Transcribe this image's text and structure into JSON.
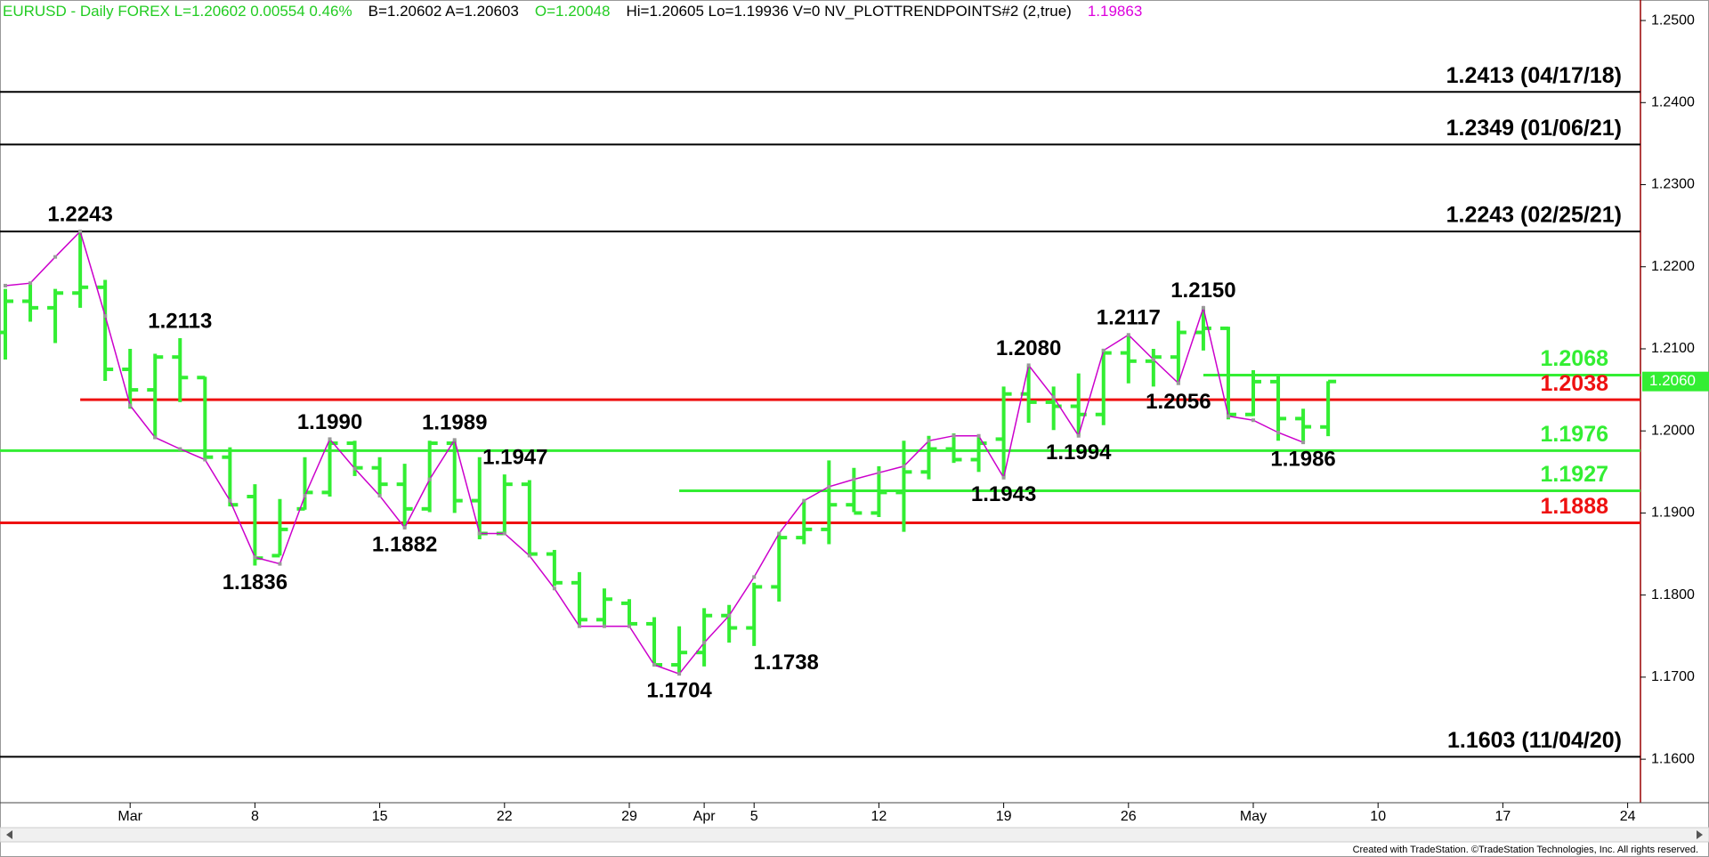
{
  "header": [
    {
      "text": "EURUSD - Daily  FOREX  L=1.20602  0.00554   0.46%",
      "color": "#22cc22"
    },
    {
      "text": "B=1.20602  A=1.20603",
      "color": "#000000"
    },
    {
      "text": "O=1.20048",
      "color": "#22cc22"
    },
    {
      "text": "Hi=1.20605  Lo=1.19936  V=0  NV_PLOTTRENDPOINTS#2 (2,true)",
      "color": "#000000"
    },
    {
      "text": "1.19863",
      "color": "#dd00dd"
    }
  ],
  "footer": "Created with TradeStation. ©TradeStation Technologies, Inc. All rights reserved.",
  "chart_data": {
    "type": "ohlc",
    "color": "#33ee33",
    "categories": [
      null,
      null,
      null,
      null,
      null,
      "Mar",
      null,
      null,
      null,
      null,
      "8",
      null,
      null,
      null,
      null,
      "15",
      null,
      null,
      null,
      null,
      "22",
      null,
      null,
      null,
      null,
      "29",
      null,
      null,
      "Apr",
      null,
      "5",
      null,
      null,
      null,
      null,
      "12",
      null,
      null,
      null,
      null,
      "19",
      null,
      null,
      null,
      null,
      "26",
      null,
      null,
      null,
      null,
      "May",
      null,
      null,
      null,
      null,
      "10",
      null,
      null,
      null,
      null,
      "17",
      null,
      null,
      null,
      null,
      "24"
    ],
    "open": [
      1.212,
      1.2158,
      1.215,
      1.2168,
      1.2175,
      1.2075,
      1.205,
      1.209,
      1.2065,
      1.1968,
      1.192,
      1.1848,
      1.1905,
      1.1925,
      1.1985,
      1.1955,
      1.1935,
      1.1905,
      1.1985,
      1.1915,
      1.1875,
      1.1935,
      1.185,
      1.1815,
      1.177,
      1.179,
      1.1765,
      1.1715,
      1.173,
      1.1775,
      1.176,
      1.181,
      1.187,
      1.188,
      1.191,
      1.19,
      1.1925,
      1.195,
      1.1978,
      1.1965,
      1.199,
      1.2045,
      1.2035,
      1.203,
      1.202,
      1.2095,
      1.2085,
      1.209,
      1.212,
      1.2125,
      1.202,
      1.206,
      1.2015,
      1.20048,
      null,
      null,
      null,
      null,
      null,
      null,
      null,
      null,
      null,
      null,
      null,
      null
    ],
    "high": [
      1.2173,
      1.218,
      1.2173,
      1.2243,
      1.2184,
      1.21,
      1.2094,
      1.2113,
      1.2066,
      1.198,
      1.1935,
      1.1917,
      1.1968,
      1.199,
      1.1988,
      1.1968,
      1.196,
      1.1988,
      1.1989,
      1.1968,
      1.1947,
      1.194,
      1.1855,
      1.1828,
      1.1808,
      1.1795,
      1.1773,
      1.1762,
      1.1784,
      1.1788,
      1.1815,
      1.1875,
      1.1915,
      1.1964,
      1.1955,
      1.1957,
      1.1988,
      1.1994,
      1.1997,
      1.1994,
      1.2054,
      1.208,
      1.2054,
      1.207,
      1.21,
      1.2117,
      1.21,
      1.2134,
      1.215,
      1.2127,
      1.2074,
      1.2067,
      1.2027,
      1.20605,
      null,
      null,
      null,
      null,
      null,
      null,
      null,
      null,
      null,
      null,
      null,
      null
    ],
    "low": [
      1.2087,
      1.2133,
      1.2107,
      1.215,
      1.2061,
      1.2027,
      1.199,
      1.2035,
      1.1967,
      1.1908,
      1.1836,
      1.1848,
      1.1904,
      1.192,
      1.1945,
      1.1921,
      1.1882,
      1.1901,
      1.19,
      1.1868,
      1.1875,
      1.1848,
      1.1811,
      1.1762,
      1.1762,
      1.1762,
      1.1713,
      1.1704,
      1.1713,
      1.1742,
      1.1738,
      1.1792,
      1.1862,
      1.1862,
      1.1901,
      1.1895,
      1.1877,
      1.1941,
      1.1961,
      1.195,
      1.1943,
      1.201,
      1.2001,
      1.1994,
      1.2007,
      1.2058,
      1.2054,
      1.2056,
      1.2098,
      1.2014,
      1.2018,
      1.1988,
      1.1986,
      1.19936,
      null,
      null,
      null,
      null,
      null,
      null,
      null,
      null,
      null,
      null,
      null,
      null
    ],
    "close": [
      1.2158,
      1.215,
      1.2168,
      1.2175,
      1.2075,
      1.205,
      1.209,
      1.2065,
      1.1968,
      1.191,
      1.1845,
      1.188,
      1.1925,
      1.1985,
      1.1955,
      1.1935,
      1.1905,
      1.1985,
      1.1915,
      1.1875,
      1.1935,
      1.185,
      1.1815,
      1.177,
      1.1795,
      1.1765,
      1.1715,
      1.173,
      1.1775,
      1.176,
      1.181,
      1.187,
      1.188,
      1.191,
      1.19,
      1.1925,
      1.195,
      1.1978,
      1.1965,
      1.1985,
      1.2045,
      1.2035,
      1.203,
      1.202,
      1.2095,
      1.2085,
      1.209,
      1.212,
      1.2125,
      1.202,
      1.206,
      1.2015,
      1.2005,
      1.20602,
      null,
      null,
      null,
      null,
      null,
      null,
      null,
      null,
      null,
      null,
      null,
      null
    ],
    "high_labels": [
      null,
      null,
      null,
      "1.2243",
      null,
      null,
      null,
      "1.2113",
      null,
      null,
      null,
      null,
      null,
      "1.1990",
      null,
      null,
      null,
      null,
      "1.1989",
      null,
      "1.1947",
      null,
      null,
      null,
      null,
      null,
      null,
      null,
      null,
      null,
      null,
      null,
      null,
      null,
      null,
      null,
      null,
      null,
      null,
      null,
      null,
      "1.2080",
      null,
      null,
      null,
      "1.2117",
      null,
      null,
      "1.2150",
      null,
      null,
      null,
      null,
      null,
      null,
      null,
      null,
      null,
      null,
      null,
      null,
      null,
      null,
      null,
      null,
      null
    ],
    "low_labels": [
      null,
      null,
      null,
      null,
      null,
      null,
      null,
      null,
      null,
      null,
      "1.1836",
      null,
      null,
      null,
      null,
      null,
      "1.1882",
      null,
      null,
      null,
      null,
      null,
      null,
      null,
      null,
      null,
      null,
      "1.1704",
      null,
      null,
      "1.1738",
      null,
      null,
      null,
      null,
      null,
      null,
      null,
      null,
      null,
      "1.1943",
      null,
      null,
      "1.1994",
      null,
      null,
      null,
      "1.2056",
      null,
      null,
      null,
      null,
      "1.1986",
      null,
      null,
      null,
      null,
      null,
      null,
      null,
      null,
      null,
      null,
      null,
      null,
      null
    ],
    "trend": {
      "color": "#cc00cc",
      "values": [
        1.2177,
        1.218,
        1.2212,
        1.2243,
        1.214,
        1.2031,
        1.1992,
        1.1978,
        1.1965,
        1.1915,
        1.1846,
        1.1838,
        1.1921,
        1.199,
        1.1954,
        1.1921,
        1.1882,
        1.1941,
        1.1989,
        1.1875,
        1.1875,
        1.1848,
        1.1808,
        1.1762,
        1.1762,
        1.1762,
        1.1715,
        1.1704,
        1.1742,
        1.1775,
        1.1822,
        1.1875,
        1.1915,
        1.1932,
        1.1941,
        1.1949,
        1.1957,
        1.1988,
        1.1994,
        1.1994,
        1.1943,
        1.208,
        1.2041,
        1.1994,
        1.2098,
        1.2117,
        1.2087,
        1.2058,
        1.215,
        1.2018,
        1.2013,
        1.1998,
        1.1986,
        null,
        null,
        null,
        null,
        null,
        null,
        null,
        null,
        null,
        null,
        null,
        null,
        null
      ]
    },
    "levels": [
      {
        "value": 1.2413,
        "label": "1.2413 (04/17/18)",
        "color": "#000000"
      },
      {
        "value": 1.2349,
        "label": "1.2349 (01/06/21)",
        "color": "#000000"
      },
      {
        "value": 1.2243,
        "label": "1.2243 (02/25/21)",
        "color": "#000000"
      },
      {
        "value": 1.2068,
        "label": "1.2068",
        "color": "#33ee33"
      },
      {
        "value": 1.2038,
        "label": "1.2038",
        "color": "#ee1111"
      },
      {
        "value": 1.1976,
        "label": "1.1976",
        "color": "#33ee33"
      },
      {
        "value": 1.1927,
        "label": "1.1927",
        "color": "#33ee33"
      },
      {
        "value": 1.1888,
        "label": "1.1888",
        "color": "#ee1111"
      },
      {
        "value": 1.1603,
        "label": "1.1603 (11/04/20)",
        "color": "#000000"
      }
    ],
    "last": {
      "value": 1.20602,
      "label": "1.2060"
    },
    "ylim": [
      1.1547,
      1.2525
    ],
    "yticks": [
      {
        "value": 1.16,
        "label": "1.1600"
      },
      {
        "value": 1.17,
        "label": "1.1700"
      },
      {
        "value": 1.18,
        "label": "1.1800"
      },
      {
        "value": 1.19,
        "label": "1.1900"
      },
      {
        "value": 1.2,
        "label": "1.2000"
      },
      {
        "value": 1.21,
        "label": "1.2100"
      },
      {
        "value": 1.22,
        "label": "1.2200"
      },
      {
        "value": 1.23,
        "label": "1.2300"
      },
      {
        "value": 1.24,
        "label": "1.2400"
      },
      {
        "value": 1.25,
        "label": "1.2500"
      }
    ]
  }
}
